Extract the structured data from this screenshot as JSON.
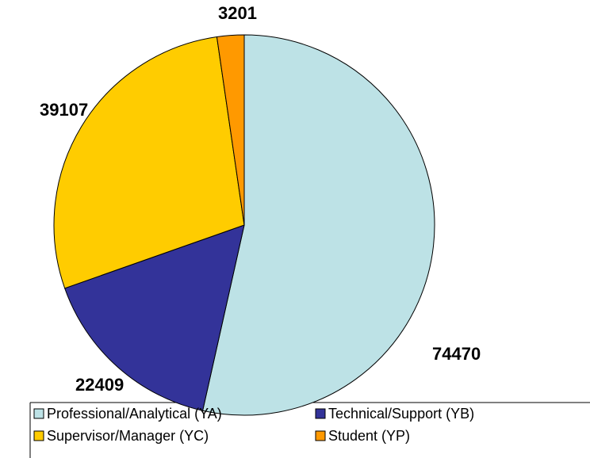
{
  "chart_data": {
    "type": "pie",
    "categories": [
      "Professional/Analytical (YA)",
      "Technical/Support (YB)",
      "Supervisor/Manager (YC)",
      "Student (YP)"
    ],
    "values": [
      74470,
      22409,
      39107,
      3201
    ],
    "colors": [
      "#bde2e6",
      "#333399",
      "#ffcc00",
      "#ff9900"
    ],
    "legend": "bottom"
  }
}
